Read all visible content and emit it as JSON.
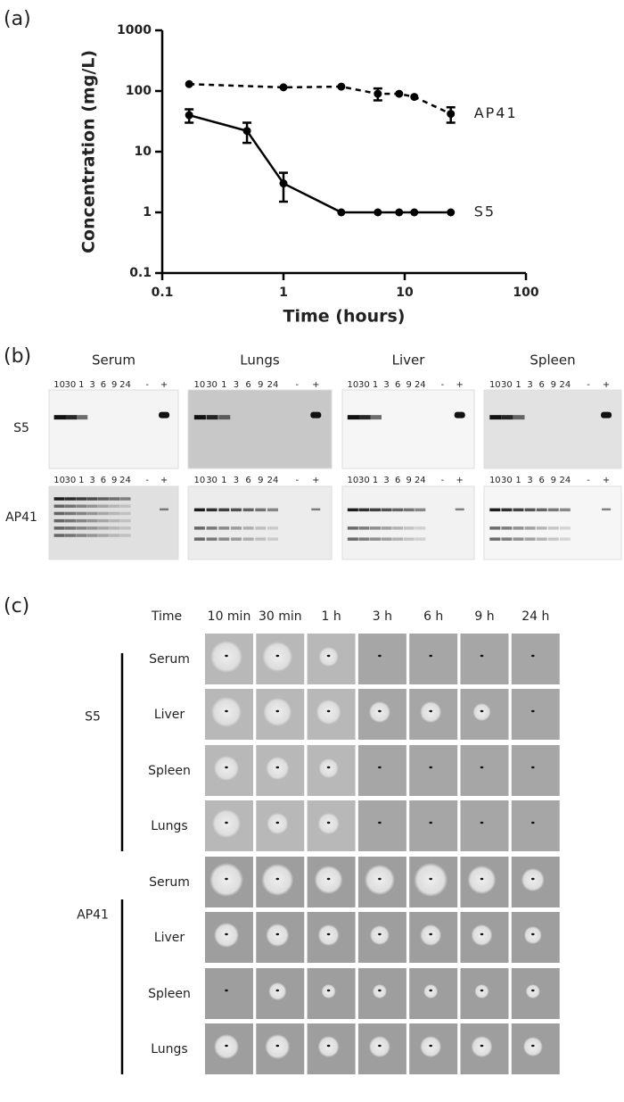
{
  "chart_data": {
    "type": "line",
    "panel_label": "(a)",
    "x_label": "Time (hours)",
    "y_label": "Concentration (mg/L)",
    "x_scale": "log",
    "y_scale": "log",
    "xlim": [
      0.1,
      100
    ],
    "ylim": [
      0.1,
      1000
    ],
    "xticks": [
      0.1,
      1,
      10,
      100
    ],
    "yticks": [
      0.1,
      1,
      10,
      100,
      1000
    ],
    "series": [
      {
        "name": "AP41",
        "color": "#000000",
        "line_style": "dashed",
        "x": [
          0.1667,
          1,
          3,
          6,
          9,
          12,
          24
        ],
        "values": [
          130,
          115,
          118,
          90,
          90,
          80,
          42
        ],
        "errors": [
          null,
          null,
          null,
          20,
          null,
          null,
          12
        ]
      },
      {
        "name": "S5",
        "color": "#000000",
        "line_style": "solid",
        "x": [
          0.1667,
          0.5,
          1,
          3,
          6,
          9,
          12,
          24
        ],
        "values": [
          40,
          22,
          3,
          1,
          1,
          1,
          1,
          1
        ],
        "errors": [
          10,
          8,
          1.5,
          null,
          null,
          null,
          null,
          null
        ]
      }
    ]
  },
  "blots": {
    "panel_label": "(b)",
    "rows": [
      "S5",
      "AP41"
    ],
    "panels": [
      {
        "title": "Serum",
        "lanes": [
          "10",
          "30",
          "1",
          "3",
          "6",
          "9",
          "24",
          "-",
          "+"
        ]
      },
      {
        "title": "Lungs",
        "lanes": [
          "10",
          "30",
          "1",
          "3",
          "6",
          "9",
          "24",
          "-",
          "+"
        ]
      },
      {
        "title": "Liver",
        "lanes": [
          "10",
          "30",
          "1",
          "3",
          "6",
          "9",
          "24",
          "-",
          "+"
        ]
      },
      {
        "title": "Spleen",
        "lanes": [
          "10",
          "30",
          "1",
          "3",
          "6",
          "9",
          "24",
          "-",
          "+"
        ]
      }
    ]
  },
  "plates": {
    "panel_label": "(c)",
    "header": "Time",
    "times": [
      "10 min",
      "30 min",
      "1 h",
      "3 h",
      "6 h",
      "9 h",
      "24 h"
    ],
    "groups": [
      {
        "name": "S5",
        "tissues": [
          "Serum",
          "Liver",
          "Spleen",
          "Lungs"
        ]
      },
      {
        "name": "AP41",
        "tissues": [
          "Serum",
          "Liver",
          "Spleen",
          "Lungs"
        ]
      }
    ]
  }
}
